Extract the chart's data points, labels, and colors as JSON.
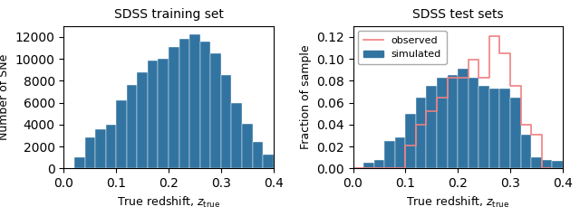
{
  "left_title": "SDSS training set",
  "right_title": "SDSS test sets",
  "xlabel": "True redshift, $z_\\mathrm{true}$",
  "left_ylabel": "Number of SNe",
  "right_ylabel": "Fraction of sample",
  "bar_color": "#3274A1",
  "observed_color": "#F08080",
  "xlim": [
    0.0,
    0.4
  ],
  "left_ylim": [
    0,
    13000
  ],
  "right_ylim": [
    0.0,
    0.13
  ],
  "bin_edges": [
    0.0,
    0.02,
    0.04,
    0.06,
    0.08,
    0.1,
    0.12,
    0.14,
    0.16,
    0.18,
    0.2,
    0.22,
    0.24,
    0.26,
    0.28,
    0.3,
    0.32,
    0.34,
    0.36,
    0.38,
    0.4
  ],
  "left_counts": [
    0,
    1050,
    2800,
    3600,
    4000,
    6250,
    7600,
    8800,
    9850,
    10000,
    11100,
    11800,
    12250,
    11550,
    10500,
    8500,
    6000,
    4050,
    2400,
    1300
  ],
  "sim_fractions": [
    0.0,
    0.005,
    0.008,
    0.025,
    0.028,
    0.05,
    0.065,
    0.075,
    0.083,
    0.085,
    0.091,
    0.083,
    0.075,
    0.073,
    0.073,
    0.065,
    0.031,
    0.01,
    0.008,
    0.007
  ],
  "obs_fractions": [
    0.0,
    0.0,
    0.0,
    0.0,
    0.0,
    0.021,
    0.04,
    0.052,
    0.065,
    0.083,
    0.083,
    0.099,
    0.083,
    0.121,
    0.105,
    0.075,
    0.04,
    0.031,
    0.0,
    0.0
  ],
  "left_yticks": [
    0,
    2000,
    4000,
    6000,
    8000,
    10000,
    12000
  ],
  "right_yticks": [
    0.0,
    0.02,
    0.04,
    0.06,
    0.08,
    0.1,
    0.12
  ],
  "xticks": [
    0.0,
    0.1,
    0.2,
    0.3,
    0.4
  ]
}
